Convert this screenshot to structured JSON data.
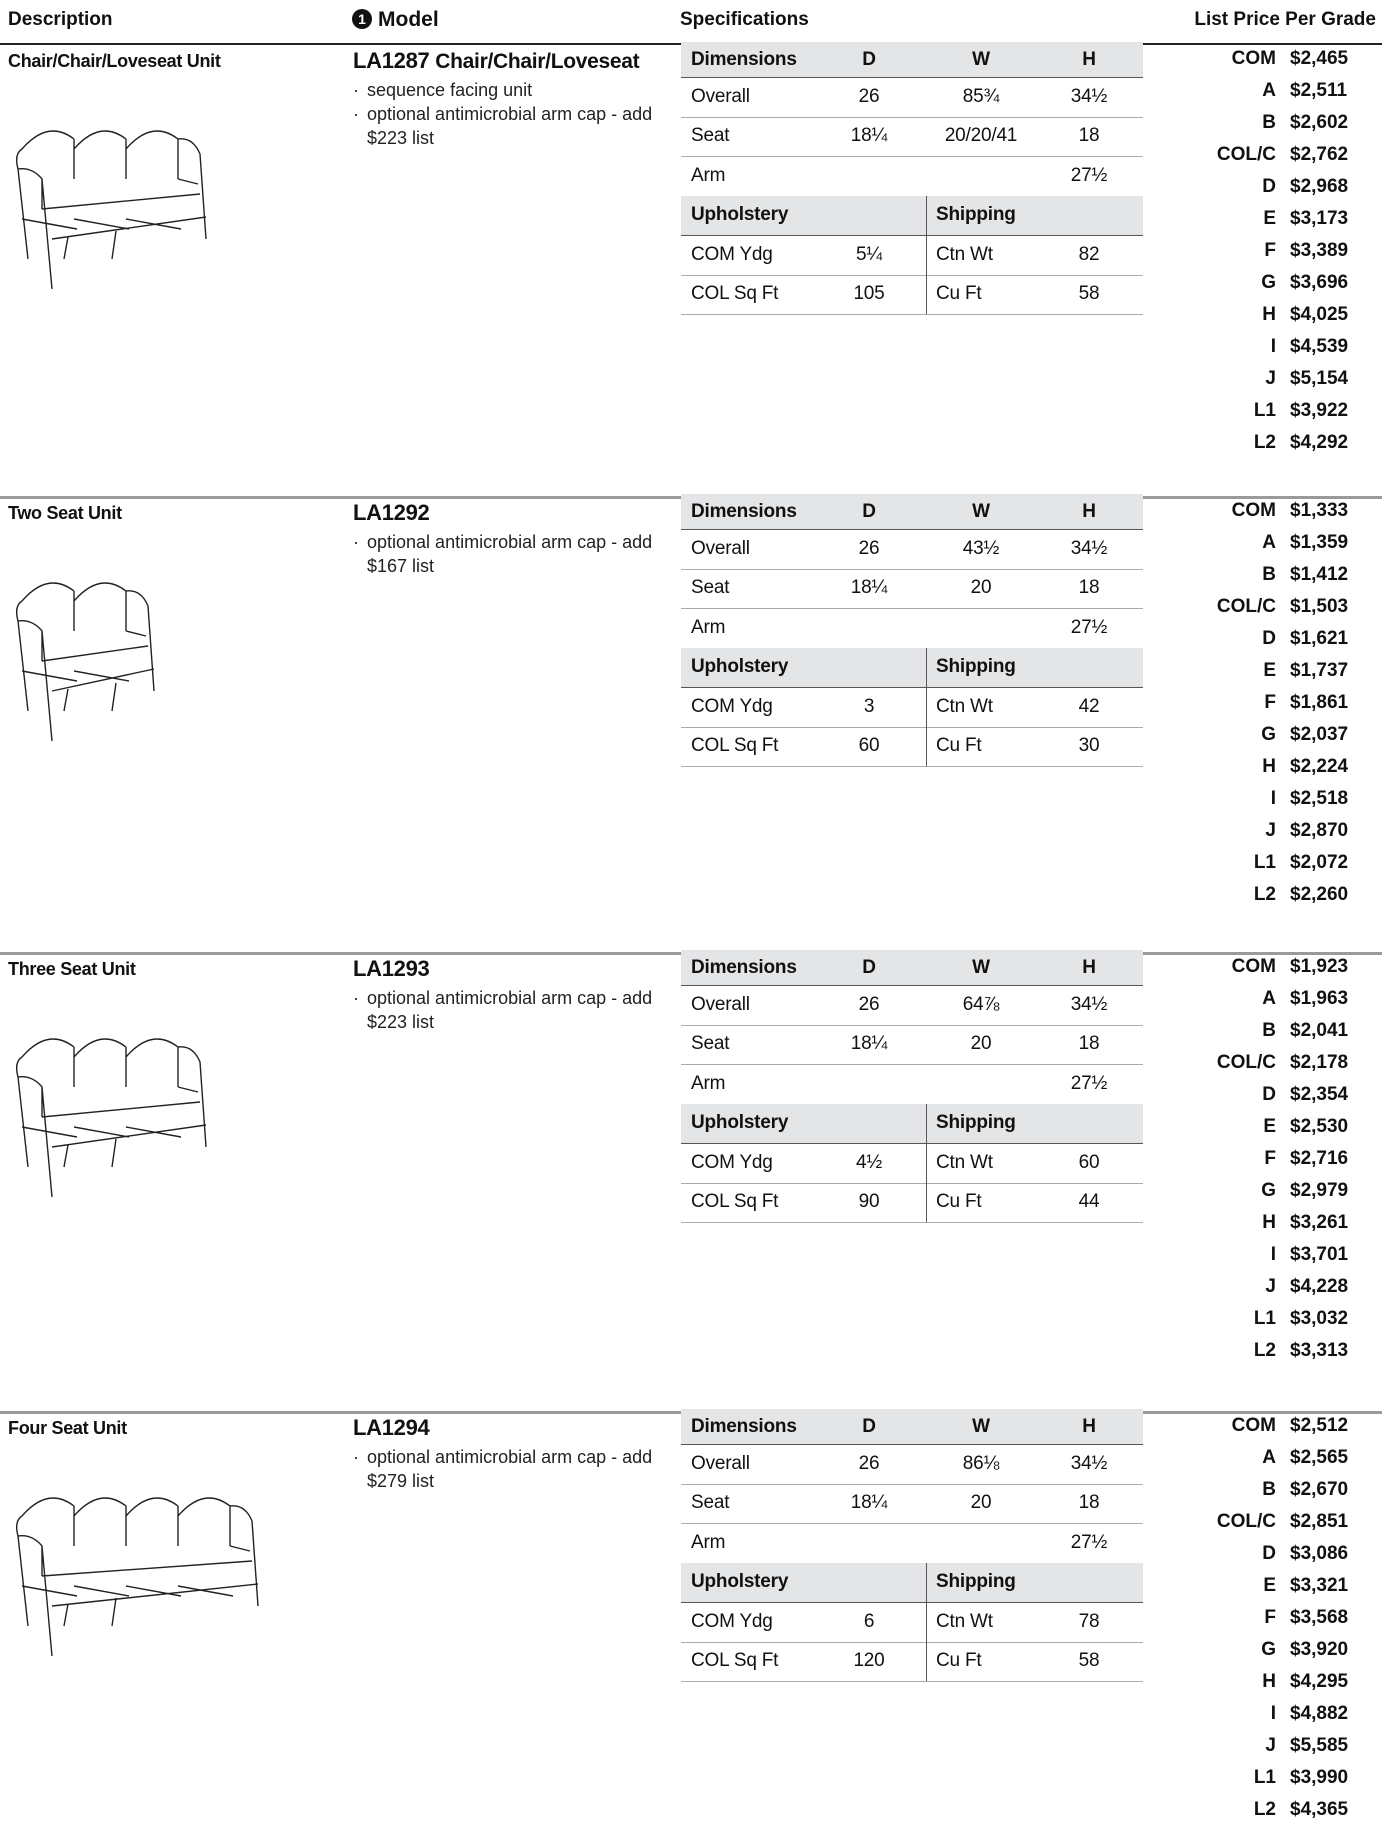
{
  "header": {
    "description": "Description",
    "model_note": "1",
    "model": "Model",
    "specifications": "Specifications",
    "price": "List Price Per Grade"
  },
  "sections": [
    {
      "description": "Chair/Chair/Loveseat Unit",
      "model": "LA1287",
      "model_suffix": "Chair/Chair/Loveseat",
      "notes": [
        "sequence facing unit",
        "optional antimicrobial arm cap - add $223 list"
      ],
      "dimensions_header": [
        "Dimensions",
        "D",
        "W",
        "H"
      ],
      "dimension_rows": [
        {
          "label": "Overall",
          "d": "26",
          "w": "85¾",
          "h": "34½"
        },
        {
          "label": "Seat",
          "d": "18¼",
          "w": "20/20/41",
          "h": "18"
        }
      ],
      "arm": {
        "label": "Arm",
        "h": "27½"
      },
      "upholstery_header": "Upholstery",
      "shipping_header": "Shipping",
      "upholstery": [
        [
          "COM Ydg",
          "5¼"
        ],
        [
          "COL Sq Ft",
          "105"
        ]
      ],
      "shipping": [
        [
          "Ctn Wt",
          "82"
        ],
        [
          "Cu Ft",
          "58"
        ]
      ],
      "prices": [
        [
          "COM",
          "$2,465"
        ],
        [
          "A",
          "$2,511"
        ],
        [
          "B",
          "$2,602"
        ],
        [
          "COL/C",
          "$2,762"
        ],
        [
          "D",
          "$2,968"
        ],
        [
          "E",
          "$3,173"
        ],
        [
          "F",
          "$3,389"
        ],
        [
          "G",
          "$3,696"
        ],
        [
          "H",
          "$4,025"
        ],
        [
          "I",
          "$4,539"
        ],
        [
          "J",
          "$5,154"
        ],
        [
          "L1",
          "$3,922"
        ],
        [
          "L2",
          "$4,292"
        ]
      ]
    },
    {
      "description": "Two Seat Unit",
      "model": "LA1292",
      "notes": [
        "optional antimicrobial arm cap - add $167 list"
      ],
      "dimensions_header": [
        "Dimensions",
        "D",
        "W",
        "H"
      ],
      "dimension_rows": [
        {
          "label": "Overall",
          "d": "26",
          "w": "43½",
          "h": "34½"
        },
        {
          "label": "Seat",
          "d": "18¼",
          "w": "20",
          "h": "18"
        }
      ],
      "arm": {
        "label": "Arm",
        "h": "27½"
      },
      "upholstery_header": "Upholstery",
      "shipping_header": "Shipping",
      "upholstery": [
        [
          "COM Ydg",
          "3"
        ],
        [
          "COL Sq Ft",
          "60"
        ]
      ],
      "shipping": [
        [
          "Ctn Wt",
          "42"
        ],
        [
          "Cu Ft",
          "30"
        ]
      ],
      "prices": [
        [
          "COM",
          "$1,333"
        ],
        [
          "A",
          "$1,359"
        ],
        [
          "B",
          "$1,412"
        ],
        [
          "COL/C",
          "$1,503"
        ],
        [
          "D",
          "$1,621"
        ],
        [
          "E",
          "$1,737"
        ],
        [
          "F",
          "$1,861"
        ],
        [
          "G",
          "$2,037"
        ],
        [
          "H",
          "$2,224"
        ],
        [
          "I",
          "$2,518"
        ],
        [
          "J",
          "$2,870"
        ],
        [
          "L1",
          "$2,072"
        ],
        [
          "L2",
          "$2,260"
        ]
      ]
    },
    {
      "description": "Three Seat Unit",
      "model": "LA1293",
      "notes": [
        "optional antimicrobial arm cap - add $223 list"
      ],
      "dimensions_header": [
        "Dimensions",
        "D",
        "W",
        "H"
      ],
      "dimension_rows": [
        {
          "label": "Overall",
          "d": "26",
          "w": "64⅞",
          "h": "34½"
        },
        {
          "label": "Seat",
          "d": "18¼",
          "w": "20",
          "h": "18"
        }
      ],
      "arm": {
        "label": "Arm",
        "h": "27½"
      },
      "upholstery_header": "Upholstery",
      "shipping_header": "Shipping",
      "upholstery": [
        [
          "COM Ydg",
          "4½"
        ],
        [
          "COL Sq Ft",
          "90"
        ]
      ],
      "shipping": [
        [
          "Ctn Wt",
          "60"
        ],
        [
          "Cu Ft",
          "44"
        ]
      ],
      "prices": [
        [
          "COM",
          "$1,923"
        ],
        [
          "A",
          "$1,963"
        ],
        [
          "B",
          "$2,041"
        ],
        [
          "COL/C",
          "$2,178"
        ],
        [
          "D",
          "$2,354"
        ],
        [
          "E",
          "$2,530"
        ],
        [
          "F",
          "$2,716"
        ],
        [
          "G",
          "$2,979"
        ],
        [
          "H",
          "$3,261"
        ],
        [
          "I",
          "$3,701"
        ],
        [
          "J",
          "$4,228"
        ],
        [
          "L1",
          "$3,032"
        ],
        [
          "L2",
          "$3,313"
        ]
      ]
    },
    {
      "description": "Four Seat Unit",
      "model": "LA1294",
      "notes": [
        "optional antimicrobial arm cap - add $279 list"
      ],
      "dimensions_header": [
        "Dimensions",
        "D",
        "W",
        "H"
      ],
      "dimension_rows": [
        {
          "label": "Overall",
          "d": "26",
          "w": "86⅛",
          "h": "34½"
        },
        {
          "label": "Seat",
          "d": "18¼",
          "w": "20",
          "h": "18"
        }
      ],
      "arm": {
        "label": "Arm",
        "h": "27½"
      },
      "upholstery_header": "Upholstery",
      "shipping_header": "Shipping",
      "upholstery": [
        [
          "COM Ydg",
          "6"
        ],
        [
          "COL Sq Ft",
          "120"
        ]
      ],
      "shipping": [
        [
          "Ctn Wt",
          "78"
        ],
        [
          "Cu Ft",
          "58"
        ]
      ],
      "prices": [
        [
          "COM",
          "$2,512"
        ],
        [
          "A",
          "$2,565"
        ],
        [
          "B",
          "$2,670"
        ],
        [
          "COL/C",
          "$2,851"
        ],
        [
          "D",
          "$3,086"
        ],
        [
          "E",
          "$3,321"
        ],
        [
          "F",
          "$3,568"
        ],
        [
          "G",
          "$3,920"
        ],
        [
          "H",
          "$4,295"
        ],
        [
          "I",
          "$4,882"
        ],
        [
          "J",
          "$5,585"
        ],
        [
          "L1",
          "$3,990"
        ],
        [
          "L2",
          "$4,365"
        ]
      ]
    }
  ]
}
